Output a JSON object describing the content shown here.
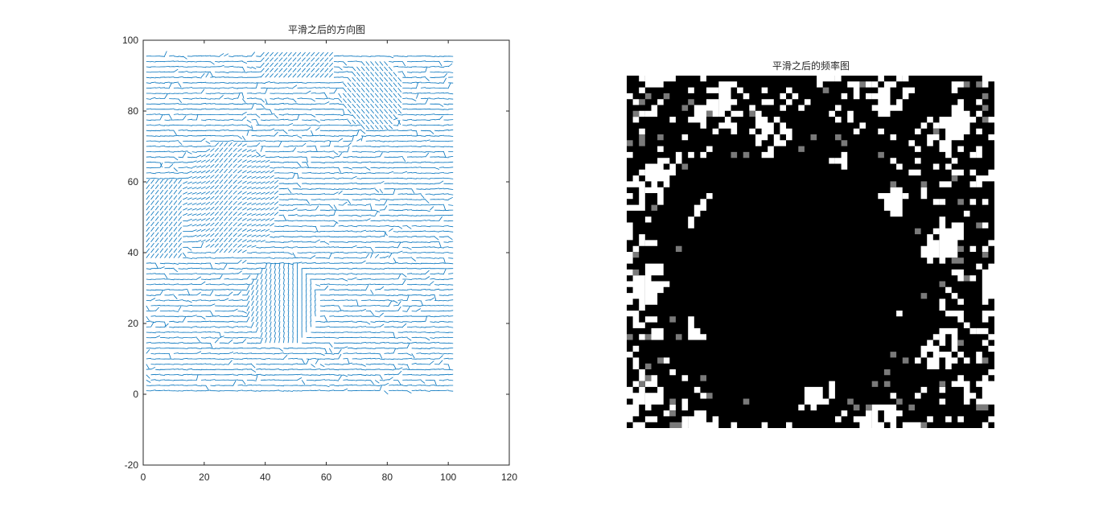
{
  "figure": {
    "background": "#ffffff",
    "axis_color": "#262626"
  },
  "chart_data": [
    {
      "type": "quiver",
      "title": "平滑之后的方向图",
      "xlim": [
        0,
        120
      ],
      "ylim": [
        -20,
        100
      ],
      "xticks": [
        "0",
        "20",
        "40",
        "60",
        "80",
        "100",
        "120"
      ],
      "yticks": [
        "-20",
        "0",
        "20",
        "40",
        "60",
        "80",
        "100"
      ],
      "grid": false,
      "color": "#0072bd",
      "field_extent": {
        "x": [
          1,
          101
        ],
        "y": [
          1,
          96
        ]
      },
      "notes": "Dense orientation field of short line segments, mostly horizontal, with diagonal/vertical swirls (fingerprint ridge orientation)."
    },
    {
      "type": "heatmap",
      "title": "平滑之后的频率图",
      "colormap": "gray",
      "axis_visible": false,
      "notes": "Binary-like grayscale frequency map: large black central region with white streaks near borders."
    }
  ]
}
